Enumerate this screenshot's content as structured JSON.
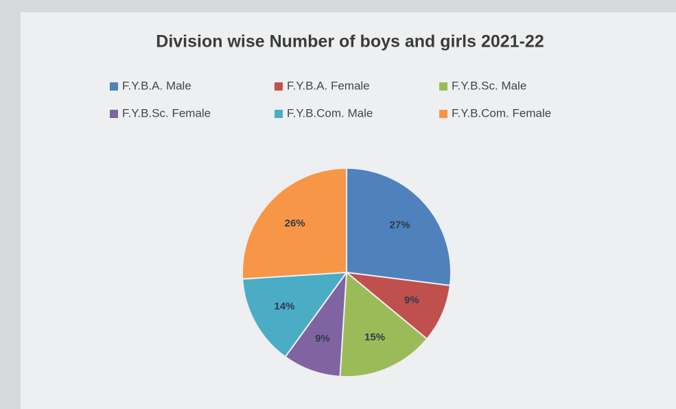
{
  "chart_data": {
    "type": "pie",
    "title": "Division wise Number of boys and girls 2021-22",
    "categories": [
      "F.Y.B.A. Male",
      "F.Y.B.A. Female",
      "F.Y.B.Sc. Male",
      "F.Y.B.Sc. Female",
      "F.Y.B.Com. Male",
      "F.Y.B.Com. Female"
    ],
    "values": [
      27,
      9,
      15,
      9,
      14,
      26
    ],
    "value_labels": [
      "27%",
      "9%",
      "15%",
      "9%",
      "14%",
      "26%"
    ],
    "colors": [
      "#4f81bd",
      "#c0504d",
      "#9bbb59",
      "#8064a2",
      "#4bacc6",
      "#f79646"
    ]
  }
}
